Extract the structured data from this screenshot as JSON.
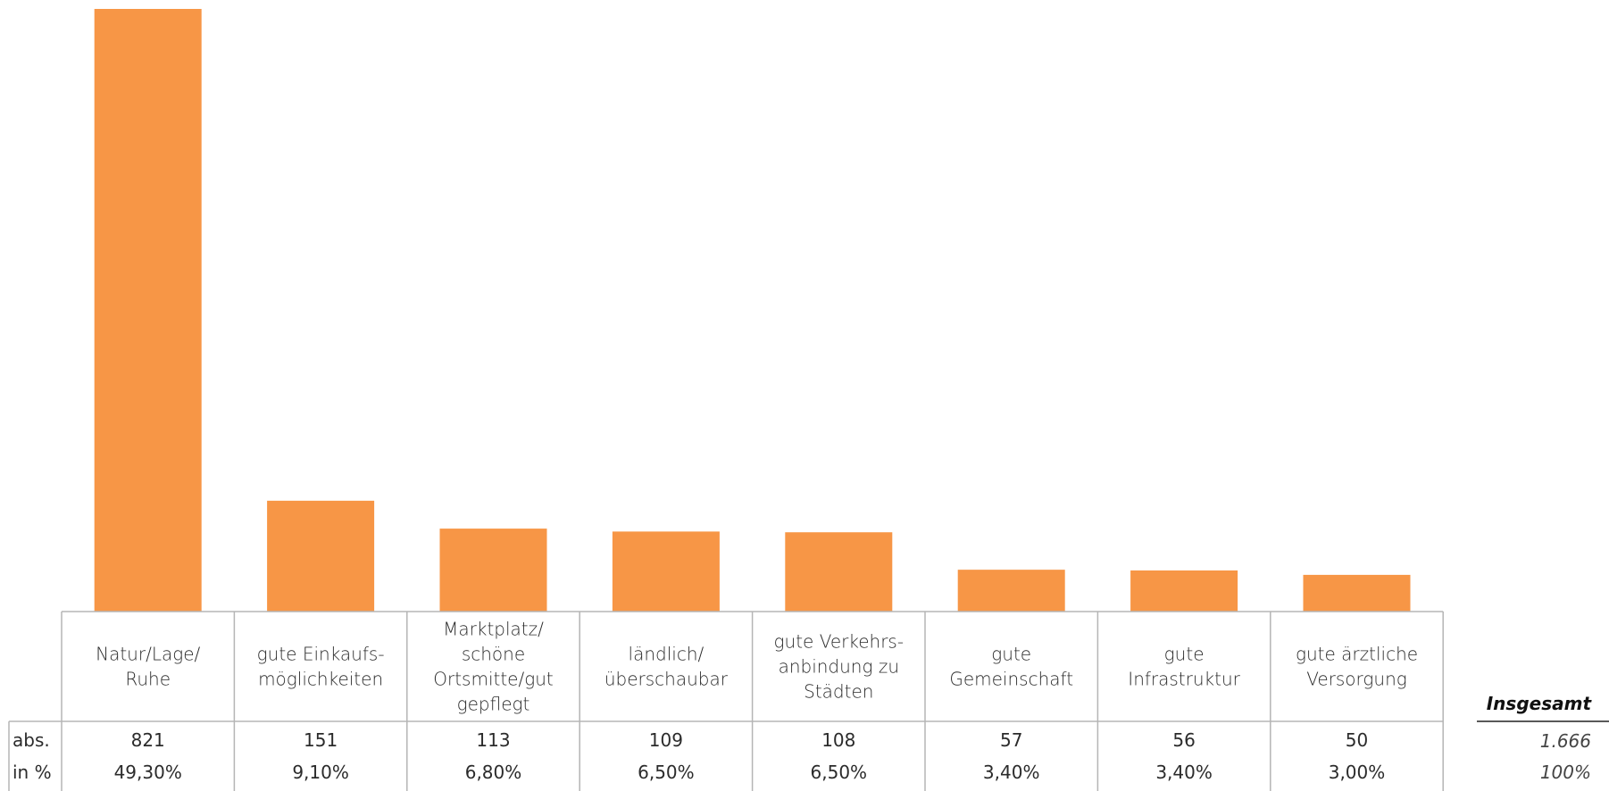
{
  "colors": {
    "bar": "#F79646",
    "grid": "#b5b5b5"
  },
  "chart_data": {
    "type": "bar",
    "categories": [
      [
        "Natur/Lage/",
        "Ruhe"
      ],
      [
        "gute Einkaufs-",
        "möglichkeiten"
      ],
      [
        "Marktplatz/",
        "schöne",
        "Ortsmitte/gut",
        "gepflegt"
      ],
      [
        "ländlich/",
        "überschaubar"
      ],
      [
        "gute Verkehrs-",
        "anbindung zu",
        "Städten"
      ],
      [
        "gute",
        "Gemeinschaft"
      ],
      [
        "gute",
        "Infrastruktur"
      ],
      [
        "gute ärztliche",
        "Versorgung"
      ]
    ],
    "values": [
      821,
      151,
      113,
      109,
      108,
      57,
      56,
      50
    ],
    "abs_labels": [
      "821",
      "151",
      "113",
      "109",
      "108",
      "57",
      "56",
      "50"
    ],
    "pct_labels": [
      "49,30%",
      "9,10%",
      "6,80%",
      "6,50%",
      "6,50%",
      "3,40%",
      "3,40%",
      "3,00%"
    ],
    "row_labels": {
      "abs": "abs.",
      "pct": "in %"
    },
    "total": {
      "header": "Insgesamt",
      "abs": "1.666",
      "pct": "100%"
    },
    "ylim": [
      0,
      821
    ]
  }
}
